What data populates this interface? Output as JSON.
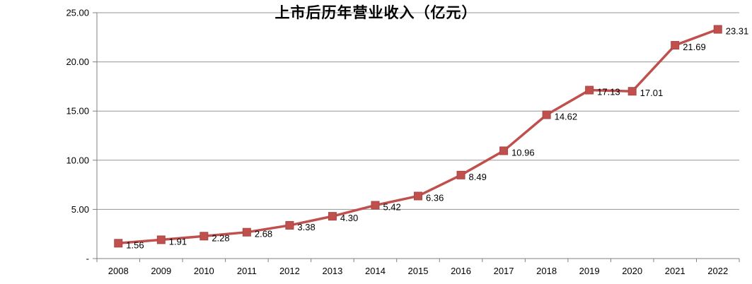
{
  "chart_data": {
    "type": "line",
    "title": "上市后历年营业收入（亿元）",
    "categories": [
      "2008",
      "2009",
      "2010",
      "2011",
      "2012",
      "2013",
      "2014",
      "2015",
      "2016",
      "2017",
      "2018",
      "2019",
      "2020",
      "2021",
      "2022"
    ],
    "values": [
      1.56,
      1.91,
      2.28,
      2.68,
      3.38,
      4.3,
      5.42,
      6.36,
      8.49,
      10.96,
      14.62,
      17.13,
      17.01,
      21.69,
      23.31
    ],
    "point_labels": [
      "1.56",
      "1.91",
      "2.28",
      "2.68",
      "3.38",
      "4.30",
      "5.42",
      "6.36",
      "8.49",
      "10.96",
      "14.62",
      "17.13",
      "17.01",
      "21.69",
      "23.31"
    ],
    "xlabel": "",
    "ylabel": "",
    "ylim": [
      0,
      25
    ],
    "y_axis": {
      "ticks": [
        {
          "label": "25.00",
          "value": 25
        },
        {
          "label": "20.00",
          "value": 20
        },
        {
          "label": "15.00",
          "value": 15
        },
        {
          "label": "10.00",
          "value": 10
        },
        {
          "label": "5.00",
          "value": 5
        },
        {
          "label": "-",
          "value": 0
        }
      ]
    },
    "legend": "none",
    "grid": "horizontal",
    "marker": "square",
    "colors": {
      "series": "#C0504D",
      "marker_edge": "#A84744",
      "gridline": "#969696",
      "axis": "#808080",
      "text": "#000000"
    }
  }
}
